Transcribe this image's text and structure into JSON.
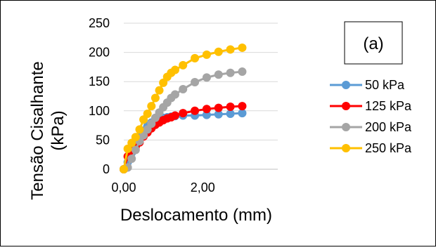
{
  "chart_data": {
    "type": "line",
    "title": "",
    "annotation": "(a)",
    "xlabel": "Deslocamento (mm)",
    "ylabel": "Tensão Cisalhante (kPa)",
    "ylabel_lines": [
      "Tensão Cisalhante",
      "(kPa)"
    ],
    "xlim": [
      0,
      3.9
    ],
    "ylim": [
      0,
      250
    ],
    "xticks": [
      0,
      2
    ],
    "xtick_labels": [
      "0,00",
      "2,00"
    ],
    "yticks": [
      0,
      50,
      100,
      150,
      200,
      250
    ],
    "ytick_labels": [
      "0",
      "50",
      "100",
      "150",
      "200",
      "250"
    ],
    "grid": true,
    "legend_position": "right",
    "series": [
      {
        "name": "50 kPa",
        "color": "#5B9BD5",
        "x": [
          0.0,
          0.1,
          0.2,
          0.3,
          0.4,
          0.5,
          0.6,
          0.7,
          0.8,
          0.9,
          1.0,
          1.1,
          1.2,
          1.3,
          1.5,
          1.8,
          2.1,
          2.4,
          2.7,
          3.0
        ],
        "y": [
          0,
          12,
          28,
          42,
          55,
          66,
          74,
          80,
          84,
          86,
          88,
          89,
          90,
          91,
          92,
          92,
          93,
          94,
          95,
          96
        ]
      },
      {
        "name": "125 kPa",
        "color": "#FF0000",
        "x": [
          0.0,
          0.1,
          0.2,
          0.3,
          0.4,
          0.5,
          0.6,
          0.7,
          0.8,
          0.9,
          1.0,
          1.1,
          1.2,
          1.3,
          1.5,
          1.8,
          2.1,
          2.4,
          2.7,
          3.0
        ],
        "y": [
          0,
          22,
          32,
          38,
          46,
          56,
          63,
          70,
          76,
          80,
          84,
          87,
          89,
          92,
          96,
          100,
          103,
          105,
          107,
          108
        ]
      },
      {
        "name": "200 kPa",
        "color": "#A5A5A5",
        "x": [
          0.0,
          0.1,
          0.2,
          0.3,
          0.4,
          0.5,
          0.6,
          0.7,
          0.8,
          0.9,
          1.0,
          1.1,
          1.2,
          1.3,
          1.5,
          1.8,
          2.1,
          2.4,
          2.7,
          3.0
        ],
        "y": [
          0,
          3,
          18,
          33,
          48,
          58,
          68,
          78,
          88,
          97,
          106,
          114,
          122,
          128,
          137,
          149,
          157,
          162,
          165,
          167
        ]
      },
      {
        "name": "250 kPa",
        "color": "#FFC000",
        "x": [
          0.0,
          0.1,
          0.2,
          0.3,
          0.4,
          0.5,
          0.6,
          0.7,
          0.8,
          0.9,
          1.0,
          1.1,
          1.2,
          1.3,
          1.5,
          1.8,
          2.1,
          2.4,
          2.7,
          3.0
        ],
        "y": [
          0,
          35,
          45,
          55,
          68,
          85,
          95,
          108,
          122,
          135,
          148,
          158,
          165,
          170,
          178,
          190,
          196,
          201,
          205,
          208
        ]
      }
    ]
  }
}
